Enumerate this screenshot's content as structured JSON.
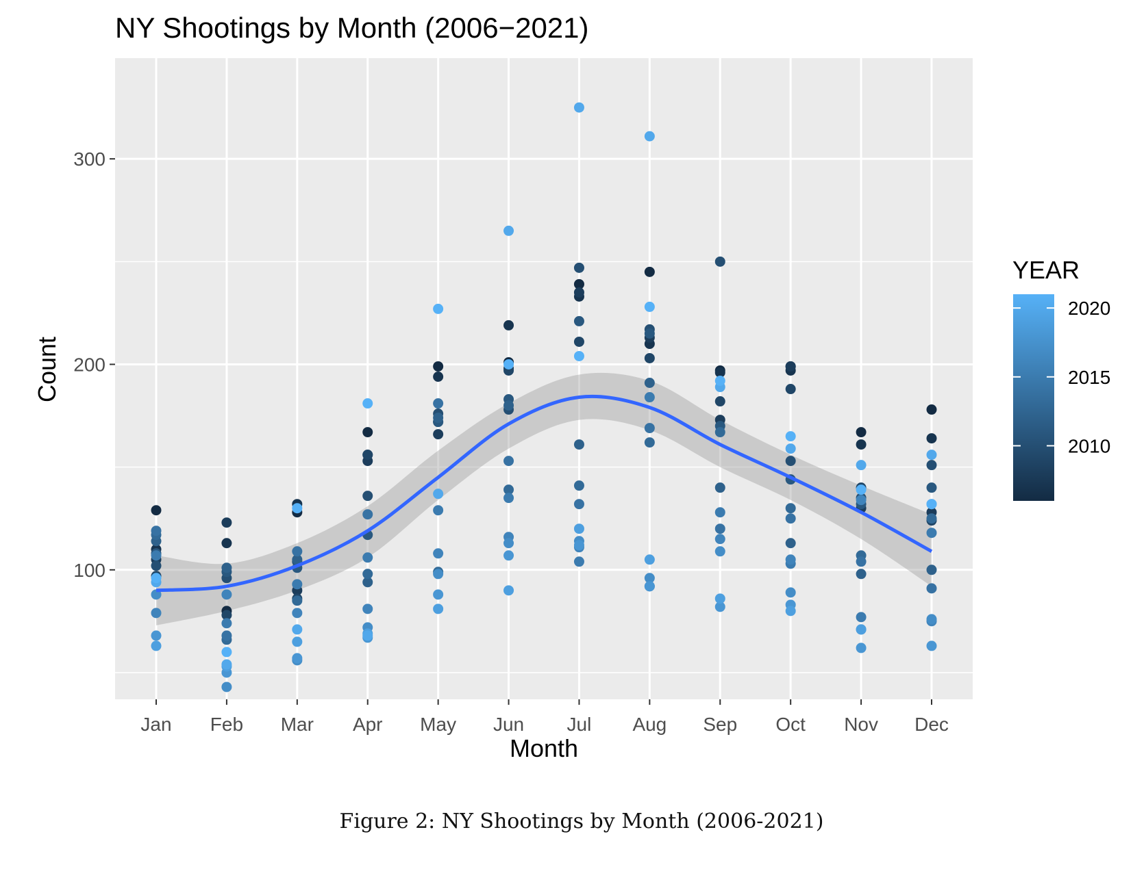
{
  "chart_data": {
    "type": "scatter",
    "title": "NY Shootings by Month (2006−2021)",
    "xlabel": "Month",
    "ylabel": "Count",
    "categories": [
      "Jan",
      "Feb",
      "Mar",
      "Apr",
      "May",
      "Jun",
      "Jul",
      "Aug",
      "Sep",
      "Oct",
      "Nov",
      "Dec"
    ],
    "ylim": [
      37,
      349
    ],
    "y_ticks": [
      100,
      200,
      300
    ],
    "y_minor_gridlines": [
      50,
      150,
      250
    ],
    "grid": true,
    "legend": {
      "title": "YEAR",
      "placement": "right",
      "range": [
        2006,
        2021
      ],
      "ticks": [
        2010,
        2015,
        2020
      ],
      "colors": [
        "#132B43",
        "#56B1F7"
      ]
    },
    "points": [
      {
        "month": "Jan",
        "year": 2006,
        "value": 129
      },
      {
        "month": "Jan",
        "year": 2007,
        "value": 110
      },
      {
        "month": "Jan",
        "year": 2008,
        "value": 105
      },
      {
        "month": "Jan",
        "year": 2009,
        "value": 97
      },
      {
        "month": "Jan",
        "year": 2010,
        "value": 102
      },
      {
        "month": "Jan",
        "year": 2011,
        "value": 108
      },
      {
        "month": "Jan",
        "year": 2012,
        "value": 114
      },
      {
        "month": "Jan",
        "year": 2013,
        "value": 117
      },
      {
        "month": "Jan",
        "year": 2014,
        "value": 119
      },
      {
        "month": "Jan",
        "year": 2015,
        "value": 107
      },
      {
        "month": "Jan",
        "year": 2016,
        "value": 79
      },
      {
        "month": "Jan",
        "year": 2017,
        "value": 88
      },
      {
        "month": "Jan",
        "year": 2018,
        "value": 68
      },
      {
        "month": "Jan",
        "year": 2019,
        "value": 63
      },
      {
        "month": "Jan",
        "year": 2020,
        "value": 94
      },
      {
        "month": "Jan",
        "year": 2021,
        "value": 96
      },
      {
        "month": "Feb",
        "year": 2006,
        "value": 80
      },
      {
        "month": "Feb",
        "year": 2007,
        "value": 113
      },
      {
        "month": "Feb",
        "year": 2008,
        "value": 123
      },
      {
        "month": "Feb",
        "year": 2009,
        "value": 78
      },
      {
        "month": "Feb",
        "year": 2010,
        "value": 96
      },
      {
        "month": "Feb",
        "year": 2011,
        "value": 99
      },
      {
        "month": "Feb",
        "year": 2012,
        "value": 101
      },
      {
        "month": "Feb",
        "year": 2013,
        "value": 66
      },
      {
        "month": "Feb",
        "year": 2014,
        "value": 68
      },
      {
        "month": "Feb",
        "year": 2015,
        "value": 74
      },
      {
        "month": "Feb",
        "year": 2016,
        "value": 88
      },
      {
        "month": "Feb",
        "year": 2017,
        "value": 43
      },
      {
        "month": "Feb",
        "year": 2018,
        "value": 50
      },
      {
        "month": "Feb",
        "year": 2019,
        "value": 53
      },
      {
        "month": "Feb",
        "year": 2020,
        "value": 54
      },
      {
        "month": "Feb",
        "year": 2021,
        "value": 60
      },
      {
        "month": "Mar",
        "year": 2006,
        "value": 128
      },
      {
        "month": "Mar",
        "year": 2007,
        "value": 132
      },
      {
        "month": "Mar",
        "year": 2008,
        "value": 90
      },
      {
        "month": "Mar",
        "year": 2009,
        "value": 86
      },
      {
        "month": "Mar",
        "year": 2010,
        "value": 104
      },
      {
        "month": "Mar",
        "year": 2011,
        "value": 101
      },
      {
        "month": "Mar",
        "year": 2012,
        "value": 105
      },
      {
        "month": "Mar",
        "year": 2013,
        "value": 85
      },
      {
        "month": "Mar",
        "year": 2014,
        "value": 109
      },
      {
        "month": "Mar",
        "year": 2015,
        "value": 93
      },
      {
        "month": "Mar",
        "year": 2016,
        "value": 79
      },
      {
        "month": "Mar",
        "year": 2017,
        "value": 56
      },
      {
        "month": "Mar",
        "year": 2018,
        "value": 57
      },
      {
        "month": "Mar",
        "year": 2019,
        "value": 65
      },
      {
        "month": "Mar",
        "year": 2020,
        "value": 71
      },
      {
        "month": "Mar",
        "year": 2021,
        "value": 130
      },
      {
        "month": "Apr",
        "year": 2006,
        "value": 167
      },
      {
        "month": "Apr",
        "year": 2007,
        "value": 156
      },
      {
        "month": "Apr",
        "year": 2008,
        "value": 153
      },
      {
        "month": "Apr",
        "year": 2009,
        "value": 156
      },
      {
        "month": "Apr",
        "year": 2010,
        "value": 136
      },
      {
        "month": "Apr",
        "year": 2011,
        "value": 117
      },
      {
        "month": "Apr",
        "year": 2012,
        "value": 94
      },
      {
        "month": "Apr",
        "year": 2013,
        "value": 98
      },
      {
        "month": "Apr",
        "year": 2014,
        "value": 127
      },
      {
        "month": "Apr",
        "year": 2015,
        "value": 106
      },
      {
        "month": "Apr",
        "year": 2016,
        "value": 81
      },
      {
        "month": "Apr",
        "year": 2017,
        "value": 72
      },
      {
        "month": "Apr",
        "year": 2018,
        "value": 67
      },
      {
        "month": "Apr",
        "year": 2019,
        "value": 69
      },
      {
        "month": "Apr",
        "year": 2020,
        "value": 68
      },
      {
        "month": "Apr",
        "year": 2021,
        "value": 181
      },
      {
        "month": "May",
        "year": 2006,
        "value": 199
      },
      {
        "month": "May",
        "year": 2007,
        "value": 194
      },
      {
        "month": "May",
        "year": 2008,
        "value": 166
      },
      {
        "month": "May",
        "year": 2009,
        "value": 172
      },
      {
        "month": "May",
        "year": 2010,
        "value": 176
      },
      {
        "month": "May",
        "year": 2011,
        "value": 172
      },
      {
        "month": "May",
        "year": 2012,
        "value": 174
      },
      {
        "month": "May",
        "year": 2013,
        "value": 99
      },
      {
        "month": "May",
        "year": 2014,
        "value": 181
      },
      {
        "month": "May",
        "year": 2015,
        "value": 129
      },
      {
        "month": "May",
        "year": 2016,
        "value": 108
      },
      {
        "month": "May",
        "year": 2017,
        "value": 98
      },
      {
        "month": "May",
        "year": 2018,
        "value": 88
      },
      {
        "month": "May",
        "year": 2019,
        "value": 81
      },
      {
        "month": "May",
        "year": 2020,
        "value": 137
      },
      {
        "month": "May",
        "year": 2021,
        "value": 227
      },
      {
        "month": "Jun",
        "year": 2006,
        "value": 201
      },
      {
        "month": "Jun",
        "year": 2007,
        "value": 219
      },
      {
        "month": "Jun",
        "year": 2008,
        "value": 198
      },
      {
        "month": "Jun",
        "year": 2009,
        "value": 197
      },
      {
        "month": "Jun",
        "year": 2010,
        "value": 178
      },
      {
        "month": "Jun",
        "year": 2011,
        "value": 183
      },
      {
        "month": "Jun",
        "year": 2012,
        "value": 180
      },
      {
        "month": "Jun",
        "year": 2013,
        "value": 139
      },
      {
        "month": "Jun",
        "year": 2014,
        "value": 153
      },
      {
        "month": "Jun",
        "year": 2015,
        "value": 135
      },
      {
        "month": "Jun",
        "year": 2016,
        "value": 116
      },
      {
        "month": "Jun",
        "year": 2017,
        "value": 113
      },
      {
        "month": "Jun",
        "year": 2018,
        "value": 107
      },
      {
        "month": "Jun",
        "year": 2019,
        "value": 90
      },
      {
        "month": "Jun",
        "year": 2020,
        "value": 265
      },
      {
        "month": "Jun",
        "year": 2021,
        "value": 200
      },
      {
        "month": "Jul",
        "year": 2006,
        "value": 239
      },
      {
        "month": "Jul",
        "year": 2007,
        "value": 233
      },
      {
        "month": "Jul",
        "year": 2008,
        "value": 235
      },
      {
        "month": "Jul",
        "year": 2009,
        "value": 211
      },
      {
        "month": "Jul",
        "year": 2010,
        "value": 247
      },
      {
        "month": "Jul",
        "year": 2011,
        "value": 221
      },
      {
        "month": "Jul",
        "year": 2012,
        "value": 161
      },
      {
        "month": "Jul",
        "year": 2013,
        "value": 141
      },
      {
        "month": "Jul",
        "year": 2014,
        "value": 132
      },
      {
        "month": "Jul",
        "year": 2015,
        "value": 104
      },
      {
        "month": "Jul",
        "year": 2016,
        "value": 111
      },
      {
        "month": "Jul",
        "year": 2017,
        "value": 114
      },
      {
        "month": "Jul",
        "year": 2018,
        "value": 112
      },
      {
        "month": "Jul",
        "year": 2019,
        "value": 120
      },
      {
        "month": "Jul",
        "year": 2020,
        "value": 325
      },
      {
        "month": "Jul",
        "year": 2021,
        "value": 204
      },
      {
        "month": "Aug",
        "year": 2006,
        "value": 245
      },
      {
        "month": "Aug",
        "year": 2007,
        "value": 210
      },
      {
        "month": "Aug",
        "year": 2008,
        "value": 213
      },
      {
        "month": "Aug",
        "year": 2009,
        "value": 203
      },
      {
        "month": "Aug",
        "year": 2010,
        "value": 217
      },
      {
        "month": "Aug",
        "year": 2011,
        "value": 215
      },
      {
        "month": "Aug",
        "year": 2012,
        "value": 191
      },
      {
        "month": "Aug",
        "year": 2013,
        "value": 162
      },
      {
        "month": "Aug",
        "year": 2014,
        "value": 169
      },
      {
        "month": "Aug",
        "year": 2015,
        "value": 184
      },
      {
        "month": "Aug",
        "year": 2016,
        "value": 92
      },
      {
        "month": "Aug",
        "year": 2017,
        "value": 96
      },
      {
        "month": "Aug",
        "year": 2018,
        "value": 92
      },
      {
        "month": "Aug",
        "year": 2019,
        "value": 105
      },
      {
        "month": "Aug",
        "year": 2020,
        "value": 311
      },
      {
        "month": "Aug",
        "year": 2021,
        "value": 228
      },
      {
        "month": "Sep",
        "year": 2006,
        "value": 197
      },
      {
        "month": "Sep",
        "year": 2007,
        "value": 196
      },
      {
        "month": "Sep",
        "year": 2008,
        "value": 173
      },
      {
        "month": "Sep",
        "year": 2009,
        "value": 182
      },
      {
        "month": "Sep",
        "year": 2010,
        "value": 250
      },
      {
        "month": "Sep",
        "year": 2011,
        "value": 170
      },
      {
        "month": "Sep",
        "year": 2012,
        "value": 140
      },
      {
        "month": "Sep",
        "year": 2013,
        "value": 167
      },
      {
        "month": "Sep",
        "year": 2014,
        "value": 120
      },
      {
        "month": "Sep",
        "year": 2015,
        "value": 128
      },
      {
        "month": "Sep",
        "year": 2016,
        "value": 115
      },
      {
        "month": "Sep",
        "year": 2017,
        "value": 109
      },
      {
        "month": "Sep",
        "year": 2018,
        "value": 82
      },
      {
        "month": "Sep",
        "year": 2019,
        "value": 86
      },
      {
        "month": "Sep",
        "year": 2020,
        "value": 189
      },
      {
        "month": "Sep",
        "year": 2021,
        "value": 192
      },
      {
        "month": "Oct",
        "year": 2006,
        "value": 199
      },
      {
        "month": "Oct",
        "year": 2007,
        "value": 197
      },
      {
        "month": "Oct",
        "year": 2008,
        "value": 199
      },
      {
        "month": "Oct",
        "year": 2009,
        "value": 188
      },
      {
        "month": "Oct",
        "year": 2010,
        "value": 153
      },
      {
        "month": "Oct",
        "year": 2011,
        "value": 144
      },
      {
        "month": "Oct",
        "year": 2012,
        "value": 113
      },
      {
        "month": "Oct",
        "year": 2013,
        "value": 130
      },
      {
        "month": "Oct",
        "year": 2014,
        "value": 125
      },
      {
        "month": "Oct",
        "year": 2015,
        "value": 103
      },
      {
        "month": "Oct",
        "year": 2016,
        "value": 105
      },
      {
        "month": "Oct",
        "year": 2017,
        "value": 89
      },
      {
        "month": "Oct",
        "year": 2018,
        "value": 83
      },
      {
        "month": "Oct",
        "year": 2019,
        "value": 80
      },
      {
        "month": "Oct",
        "year": 2020,
        "value": 159
      },
      {
        "month": "Oct",
        "year": 2021,
        "value": 165
      },
      {
        "month": "Nov",
        "year": 2006,
        "value": 167
      },
      {
        "month": "Nov",
        "year": 2007,
        "value": 161
      },
      {
        "month": "Nov",
        "year": 2008,
        "value": 130
      },
      {
        "month": "Nov",
        "year": 2009,
        "value": 140
      },
      {
        "month": "Nov",
        "year": 2010,
        "value": 135
      },
      {
        "month": "Nov",
        "year": 2011,
        "value": 132
      },
      {
        "month": "Nov",
        "year": 2012,
        "value": 98
      },
      {
        "month": "Nov",
        "year": 2013,
        "value": 107
      },
      {
        "month": "Nov",
        "year": 2014,
        "value": 104
      },
      {
        "month": "Nov",
        "year": 2015,
        "value": 77
      },
      {
        "month": "Nov",
        "year": 2016,
        "value": 134
      },
      {
        "month": "Nov",
        "year": 2017,
        "value": 71
      },
      {
        "month": "Nov",
        "year": 2018,
        "value": 62
      },
      {
        "month": "Nov",
        "year": 2019,
        "value": 71
      },
      {
        "month": "Nov",
        "year": 2020,
        "value": 151
      },
      {
        "month": "Nov",
        "year": 2021,
        "value": 139
      },
      {
        "month": "Dec",
        "year": 2006,
        "value": 178
      },
      {
        "month": "Dec",
        "year": 2007,
        "value": 164
      },
      {
        "month": "Dec",
        "year": 2008,
        "value": 128
      },
      {
        "month": "Dec",
        "year": 2009,
        "value": 124
      },
      {
        "month": "Dec",
        "year": 2010,
        "value": 151
      },
      {
        "month": "Dec",
        "year": 2011,
        "value": 140
      },
      {
        "month": "Dec",
        "year": 2012,
        "value": 100
      },
      {
        "month": "Dec",
        "year": 2013,
        "value": 125
      },
      {
        "month": "Dec",
        "year": 2014,
        "value": 91
      },
      {
        "month": "Dec",
        "year": 2015,
        "value": 118
      },
      {
        "month": "Dec",
        "year": 2016,
        "value": 75
      },
      {
        "month": "Dec",
        "year": 2017,
        "value": 76
      },
      {
        "month": "Dec",
        "year": 2018,
        "value": 63
      },
      {
        "month": "Dec",
        "year": 2019,
        "value": 132
      },
      {
        "month": "Dec",
        "year": 2020,
        "value": 156
      },
      {
        "month": "Dec",
        "year": 2021,
        "value": 132
      }
    ],
    "smooth": {
      "method": "loess",
      "color": "#3366FF",
      "ribbon_color": "#999999",
      "x": [
        "Jan",
        "Feb",
        "Mar",
        "Apr",
        "May",
        "Jun",
        "Jul",
        "Aug",
        "Sep",
        "Oct",
        "Nov",
        "Dec"
      ],
      "fit": [
        90,
        92,
        102,
        119,
        145,
        171,
        184,
        179,
        161,
        145,
        128,
        109
      ],
      "lower": [
        73,
        80,
        90,
        106,
        134,
        159,
        173,
        168,
        150,
        134,
        115,
        92
      ],
      "upper": [
        107,
        103,
        113,
        131,
        158,
        181,
        195,
        192,
        173,
        156,
        141,
        127
      ]
    }
  },
  "caption": "Figure 2: NY Shootings by Month (2006-2021)"
}
